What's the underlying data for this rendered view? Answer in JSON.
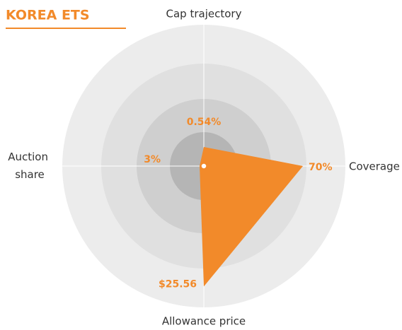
{
  "chart_data": {
    "type": "radar",
    "title": "KOREA ETS",
    "categories": [
      "Cap trajectory",
      "Coverage",
      "Allowance price",
      "Auction share"
    ],
    "values": [
      0.54,
      70,
      25.56,
      3
    ],
    "value_labels": [
      "0.54%",
      "70%",
      "$25.56",
      "3%"
    ],
    "rlims": [
      [
        0,
        4
      ],
      [
        0,
        100
      ],
      [
        0,
        30
      ],
      [
        0,
        100
      ]
    ],
    "color": "#f28a2a"
  }
}
